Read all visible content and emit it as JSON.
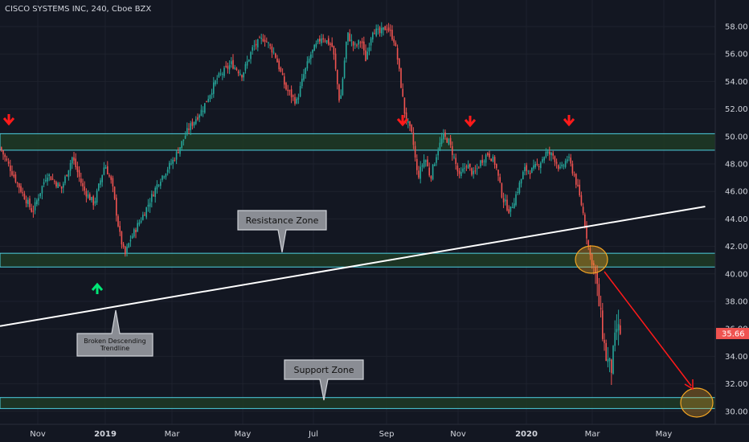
{
  "header": {
    "title": "CISCO SYSTEMS INC, 240, Cboe BZX"
  },
  "colors": {
    "background": "#131722",
    "up": "#26a69a",
    "down": "#ef5350",
    "zone_fill": "#1f3a24",
    "zone_border": "#4dd0e1",
    "trendline": "#ffffff",
    "arrow_red": "#ff1a1a",
    "arrow_green": "#00e676",
    "circle": "#f5a623",
    "price_tag": "#ef5350"
  },
  "annotations": {
    "resistance_label": "Resistance Zone",
    "support_label": "Support Zone",
    "trendline_label_1": "Broken Descending",
    "trendline_label_2": "Trendline",
    "red_arrow_icon": "arrow-down-icon",
    "green_arrow_icon": "arrow-up-icon"
  },
  "chart_data": {
    "type": "candlestick",
    "title": "CISCO SYSTEMS INC, 240, Cboe BZX",
    "ylim": [
      29.0,
      59.2
    ],
    "y_ticks": [
      "58.00",
      "56.00",
      "54.00",
      "52.00",
      "50.00",
      "48.00",
      "46.00",
      "44.00",
      "42.00",
      "40.00",
      "38.00",
      "36.00",
      "34.00",
      "32.00",
      "30.00"
    ],
    "x_ticks": [
      "Nov",
      "2019",
      "Mar",
      "May",
      "Jul",
      "Sep",
      "Nov",
      "2020",
      "Mar",
      "May"
    ],
    "last_price": "35.66",
    "approx_closes": [
      [
        0.0,
        49.2
      ],
      [
        0.05,
        46.5
      ],
      [
        0.09,
        44.5
      ],
      [
        0.13,
        47.3
      ],
      [
        0.17,
        46.2
      ],
      [
        0.2,
        48.5
      ],
      [
        0.23,
        46.2
      ],
      [
        0.26,
        45.1
      ],
      [
        0.29,
        48.0
      ],
      [
        0.31,
        46.5
      ],
      [
        0.33,
        43.0
      ],
      [
        0.345,
        41.3
      ],
      [
        0.36,
        42.5
      ],
      [
        0.4,
        44.5
      ],
      [
        0.44,
        46.8
      ],
      [
        0.48,
        48.3
      ],
      [
        0.52,
        50.5
      ],
      [
        0.56,
        52.0
      ],
      [
        0.6,
        54.2
      ],
      [
        0.64,
        55.3
      ],
      [
        0.67,
        54.5
      ],
      [
        0.7,
        56.5
      ],
      [
        0.73,
        57.2
      ],
      [
        0.76,
        56.0
      ],
      [
        0.79,
        53.5
      ],
      [
        0.82,
        52.5
      ],
      [
        0.84,
        54.5
      ],
      [
        0.86,
        56.0
      ],
      [
        0.89,
        57.3
      ],
      [
        0.92,
        56.5
      ],
      [
        0.94,
        52.3
      ],
      [
        0.96,
        57.5
      ],
      [
        0.98,
        56.5
      ],
      [
        1.0,
        57.0
      ],
      [
        1.01,
        55.5
      ],
      [
        1.03,
        57.8
      ],
      [
        1.05,
        57.5
      ],
      [
        1.07,
        58.0
      ],
      [
        1.09,
        57.0
      ],
      [
        1.1,
        55.5
      ],
      [
        1.12,
        51.5
      ],
      [
        1.14,
        50.0
      ],
      [
        1.155,
        47.0
      ],
      [
        1.175,
        48.5
      ],
      [
        1.19,
        47.0
      ],
      [
        1.21,
        49.0
      ],
      [
        1.225,
        50.0
      ],
      [
        1.24,
        49.7
      ],
      [
        1.255,
        48.5
      ],
      [
        1.27,
        47.0
      ],
      [
        1.29,
        48.0
      ],
      [
        1.31,
        47.2
      ],
      [
        1.33,
        48.2
      ],
      [
        1.35,
        48.8
      ],
      [
        1.37,
        48.0
      ],
      [
        1.39,
        45.5
      ],
      [
        1.41,
        44.5
      ],
      [
        1.43,
        46.0
      ],
      [
        1.45,
        47.6
      ],
      [
        1.47,
        47.5
      ],
      [
        1.49,
        48.0
      ],
      [
        1.51,
        48.8
      ],
      [
        1.53,
        48.6
      ],
      [
        1.55,
        47.5
      ],
      [
        1.57,
        48.5
      ],
      [
        1.59,
        47.0
      ],
      [
        1.61,
        44.8
      ],
      [
        1.63,
        41.5
      ],
      [
        1.645,
        40.2
      ],
      [
        1.66,
        37.0
      ],
      [
        1.675,
        34.0
      ],
      [
        1.69,
        33.0
      ],
      [
        1.705,
        36.0
      ],
      [
        1.72,
        35.66
      ]
    ],
    "resistance_zone": [
      49.0,
      50.2
    ],
    "middle_zone": [
      40.5,
      41.5
    ],
    "support_zone": [
      30.2,
      31.0
    ],
    "trendline": {
      "start": [
        0.0,
        36.2
      ],
      "end": [
        1.95,
        44.9
      ]
    }
  }
}
